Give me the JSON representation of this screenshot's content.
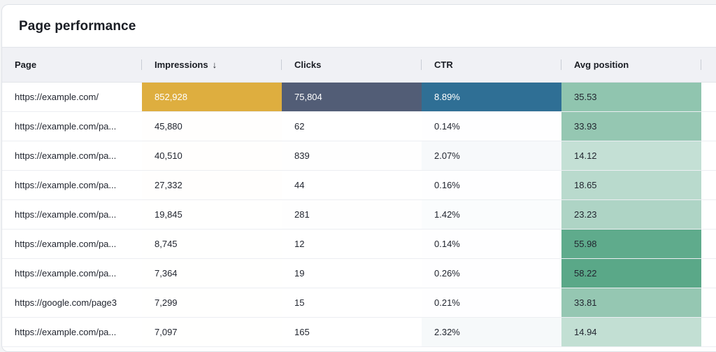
{
  "title": "Page performance",
  "columns": {
    "page": "Page",
    "impressions": "Impressions",
    "impressions_sort": "↓",
    "clicks": "Clicks",
    "ctr": "CTR",
    "avg_position": "Avg position"
  },
  "rows": [
    {
      "page": "https://example.com/",
      "impressions": "852,928",
      "clicks": "75,804",
      "ctr": "8.89%",
      "avg_position": "35.53"
    },
    {
      "page": "https://example.com/pa...",
      "impressions": "45,880",
      "clicks": "62",
      "ctr": "0.14%",
      "avg_position": "33.93"
    },
    {
      "page": "https://example.com/pa...",
      "impressions": "40,510",
      "clicks": "839",
      "ctr": "2.07%",
      "avg_position": "14.12"
    },
    {
      "page": "https://example.com/pa...",
      "impressions": "27,332",
      "clicks": "44",
      "ctr": "0.16%",
      "avg_position": "18.65"
    },
    {
      "page": "https://example.com/pa...",
      "impressions": "19,845",
      "clicks": "281",
      "ctr": "1.42%",
      "avg_position": "23.23"
    },
    {
      "page": "https://example.com/pa...",
      "impressions": "8,745",
      "clicks": "12",
      "ctr": "0.14%",
      "avg_position": "55.98"
    },
    {
      "page": "https://example.com/pa...",
      "impressions": "7,364",
      "clicks": "19",
      "ctr": "0.26%",
      "avg_position": "58.22"
    },
    {
      "page": "https://google.com/page3",
      "impressions": "7,299",
      "clicks": "15",
      "ctr": "0.21%",
      "avg_position": "33.81"
    },
    {
      "page": "https://example.com/pa...",
      "impressions": "7,097",
      "clicks": "165",
      "ctr": "2.32%",
      "avg_position": "14.94"
    }
  ],
  "colors": {
    "impressions_heat": "#deae3f",
    "clicks_heat": "#525d76",
    "ctr_heat": "#2f6f95",
    "position_heat": "#5aa888"
  }
}
